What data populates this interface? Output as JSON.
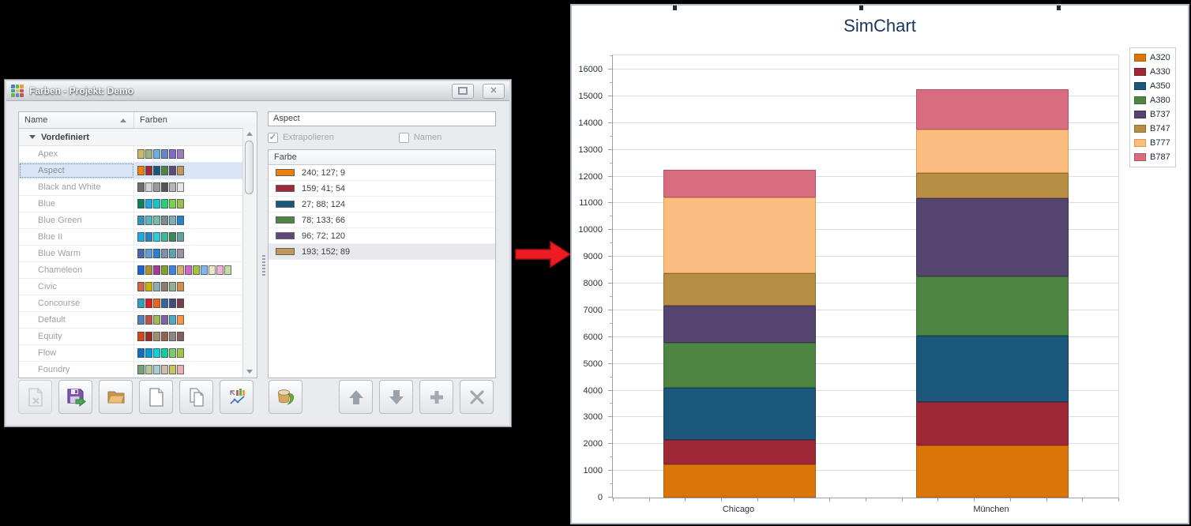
{
  "dialog": {
    "title": "Farben - Projekt: Demo",
    "app_icon_colors": [
      "#4E7FC1",
      "#6CAE4C",
      "#E0A23C",
      "#3FA49E",
      "#D8C44E",
      "#CC5252",
      "#7FB04F",
      "#5588CC",
      "#C05555"
    ],
    "window_buttons": {
      "close_glyph": "✕"
    },
    "table": {
      "columns": [
        "Name",
        "Farben"
      ],
      "group_row": "Vordefiniert",
      "rows": [
        {
          "name": "Apex",
          "colors": [
            "#CEB966",
            "#9CB084",
            "#6BB1E0",
            "#6585CF",
            "#7E6BC9",
            "#A379BB"
          ]
        },
        {
          "name": "Aspect",
          "selected": true,
          "colors": [
            "#F07F09",
            "#9F2936",
            "#1B587C",
            "#4E8542",
            "#604878",
            "#C19859"
          ]
        },
        {
          "name": "Black and White",
          "colors": [
            "#6E6E6E",
            "#D4D4D4",
            "#9A9A9A",
            "#545454",
            "#B5B5B5",
            "#E6E6E6"
          ]
        },
        {
          "name": "Blue",
          "colors": [
            "#0E8060",
            "#1FA7E0",
            "#12C8C8",
            "#25D07D",
            "#7ACF4C",
            "#9CBE4E"
          ]
        },
        {
          "name": "Blue Green",
          "colors": [
            "#3494BA",
            "#58B6C0",
            "#75BDA7",
            "#7A8C8E",
            "#84ACB6",
            "#2683C6"
          ]
        },
        {
          "name": "Blue II",
          "colors": [
            "#1CADE4",
            "#2683C6",
            "#27CED7",
            "#42BA97",
            "#3E8853",
            "#62A39F"
          ]
        },
        {
          "name": "Blue Warm",
          "colors": [
            "#4A66AC",
            "#629DD1",
            "#297FD5",
            "#7F8FA9",
            "#5AA2AE",
            "#9D90A0"
          ]
        },
        {
          "name": "Chameleon",
          "colors": [
            "#1C63D6",
            "#B09030",
            "#A33A99",
            "#82A12B",
            "#3B82E8",
            "#D9B26A",
            "#D166C4",
            "#A4C43F",
            "#7FB6ED",
            "#EDE6C5",
            "#EFB3D2",
            "#C7DCA4"
          ]
        },
        {
          "name": "Civic",
          "colors": [
            "#D16349",
            "#CCB400",
            "#8CADAE",
            "#8C7B70",
            "#8FB08C",
            "#D19049"
          ]
        },
        {
          "name": "Concourse",
          "colors": [
            "#2DA2BF",
            "#DA1F28",
            "#EB641B",
            "#39639D",
            "#474B78",
            "#7D3C4A"
          ]
        },
        {
          "name": "Default",
          "colors": [
            "#4F81BD",
            "#C0504D",
            "#9BBB59",
            "#8064A2",
            "#4BACC6",
            "#F79646"
          ]
        },
        {
          "name": "Equity",
          "colors": [
            "#D34817",
            "#9B2D1F",
            "#A28E6A",
            "#956251",
            "#918485",
            "#855D5D"
          ]
        },
        {
          "name": "Flow",
          "colors": [
            "#0F6FC6",
            "#009DD9",
            "#0BD0D9",
            "#10CF9B",
            "#7CCA62",
            "#A5C249"
          ]
        },
        {
          "name": "Foundry",
          "colors": [
            "#72A376",
            "#B5CB95",
            "#A8CDD7",
            "#C9BFAE",
            "#CCC160",
            "#EDAEB5"
          ]
        }
      ]
    },
    "editor": {
      "name_value": "Aspect",
      "checkbox_extrapolate": {
        "label": "Extrapolieren",
        "checked": true
      },
      "checkbox_names": {
        "label": "Namen",
        "checked": false
      },
      "color_list": {
        "header": "Farbe",
        "items": [
          {
            "rgb_text": "240; 127; 9",
            "color": "#F07F09"
          },
          {
            "rgb_text": "159; 41; 54",
            "color": "#9F2936"
          },
          {
            "rgb_text": "27; 88; 124",
            "color": "#1B587C"
          },
          {
            "rgb_text": "78; 133; 66",
            "color": "#4E8542"
          },
          {
            "rgb_text": "96; 72; 120",
            "color": "#604878"
          },
          {
            "rgb_text": "193; 152; 89",
            "color": "#C19859",
            "selected": true
          }
        ]
      }
    },
    "toolbar": {
      "buttons": [
        {
          "icon": "delete-document-icon",
          "disabled": true
        },
        {
          "icon": "save-export-icon"
        },
        {
          "icon": "open-folder-icon"
        },
        {
          "icon": "new-document-icon"
        },
        {
          "icon": "copy-icon"
        },
        {
          "icon": "export-chart-icon"
        },
        {
          "icon": "fill-colors-icon"
        },
        {
          "icon": "move-up-icon"
        },
        {
          "icon": "move-down-icon"
        },
        {
          "icon": "add-icon"
        },
        {
          "icon": "remove-icon"
        }
      ]
    }
  },
  "arrow": {
    "color": "#ED1C24",
    "edge": "#B01015"
  },
  "chart_data": {
    "type": "bar",
    "stacked": true,
    "title": "SimChart",
    "title_color": "#17365D",
    "categories": [
      "Chicago",
      "München"
    ],
    "series": [
      {
        "name": "A320",
        "color": "#DC7509",
        "border": "#B35F05",
        "values": [
          1250,
          1960
        ]
      },
      {
        "name": "A330",
        "color": "#9F2936",
        "border": "#7D1F2B",
        "values": [
          900,
          1610
        ]
      },
      {
        "name": "A350",
        "color": "#1B587C",
        "border": "#123F5A",
        "values": [
          1950,
          2470
        ]
      },
      {
        "name": "A380",
        "color": "#4E8542",
        "border": "#3A6A31",
        "values": [
          1700,
          2240
        ]
      },
      {
        "name": "B737",
        "color": "#564570",
        "border": "#3F3355",
        "values": [
          1370,
          2900
        ]
      },
      {
        "name": "B747",
        "color": "#B78E43",
        "border": "#8F6E31",
        "values": [
          1200,
          950
        ]
      },
      {
        "name": "B777",
        "color": "#FABD7F",
        "border": "#DE9A55",
        "values": [
          2850,
          1620
        ]
      },
      {
        "name": "B787",
        "color": "#D76D7F",
        "border": "#B84F62",
        "values": [
          1020,
          1500
        ]
      }
    ],
    "totals": {
      "Chicago": 12240,
      "München": 15250
    },
    "ylim": [
      0,
      16000
    ],
    "ytick_step": 1000,
    "yminor_step": 500,
    "grid": true,
    "legend_position": "right"
  }
}
